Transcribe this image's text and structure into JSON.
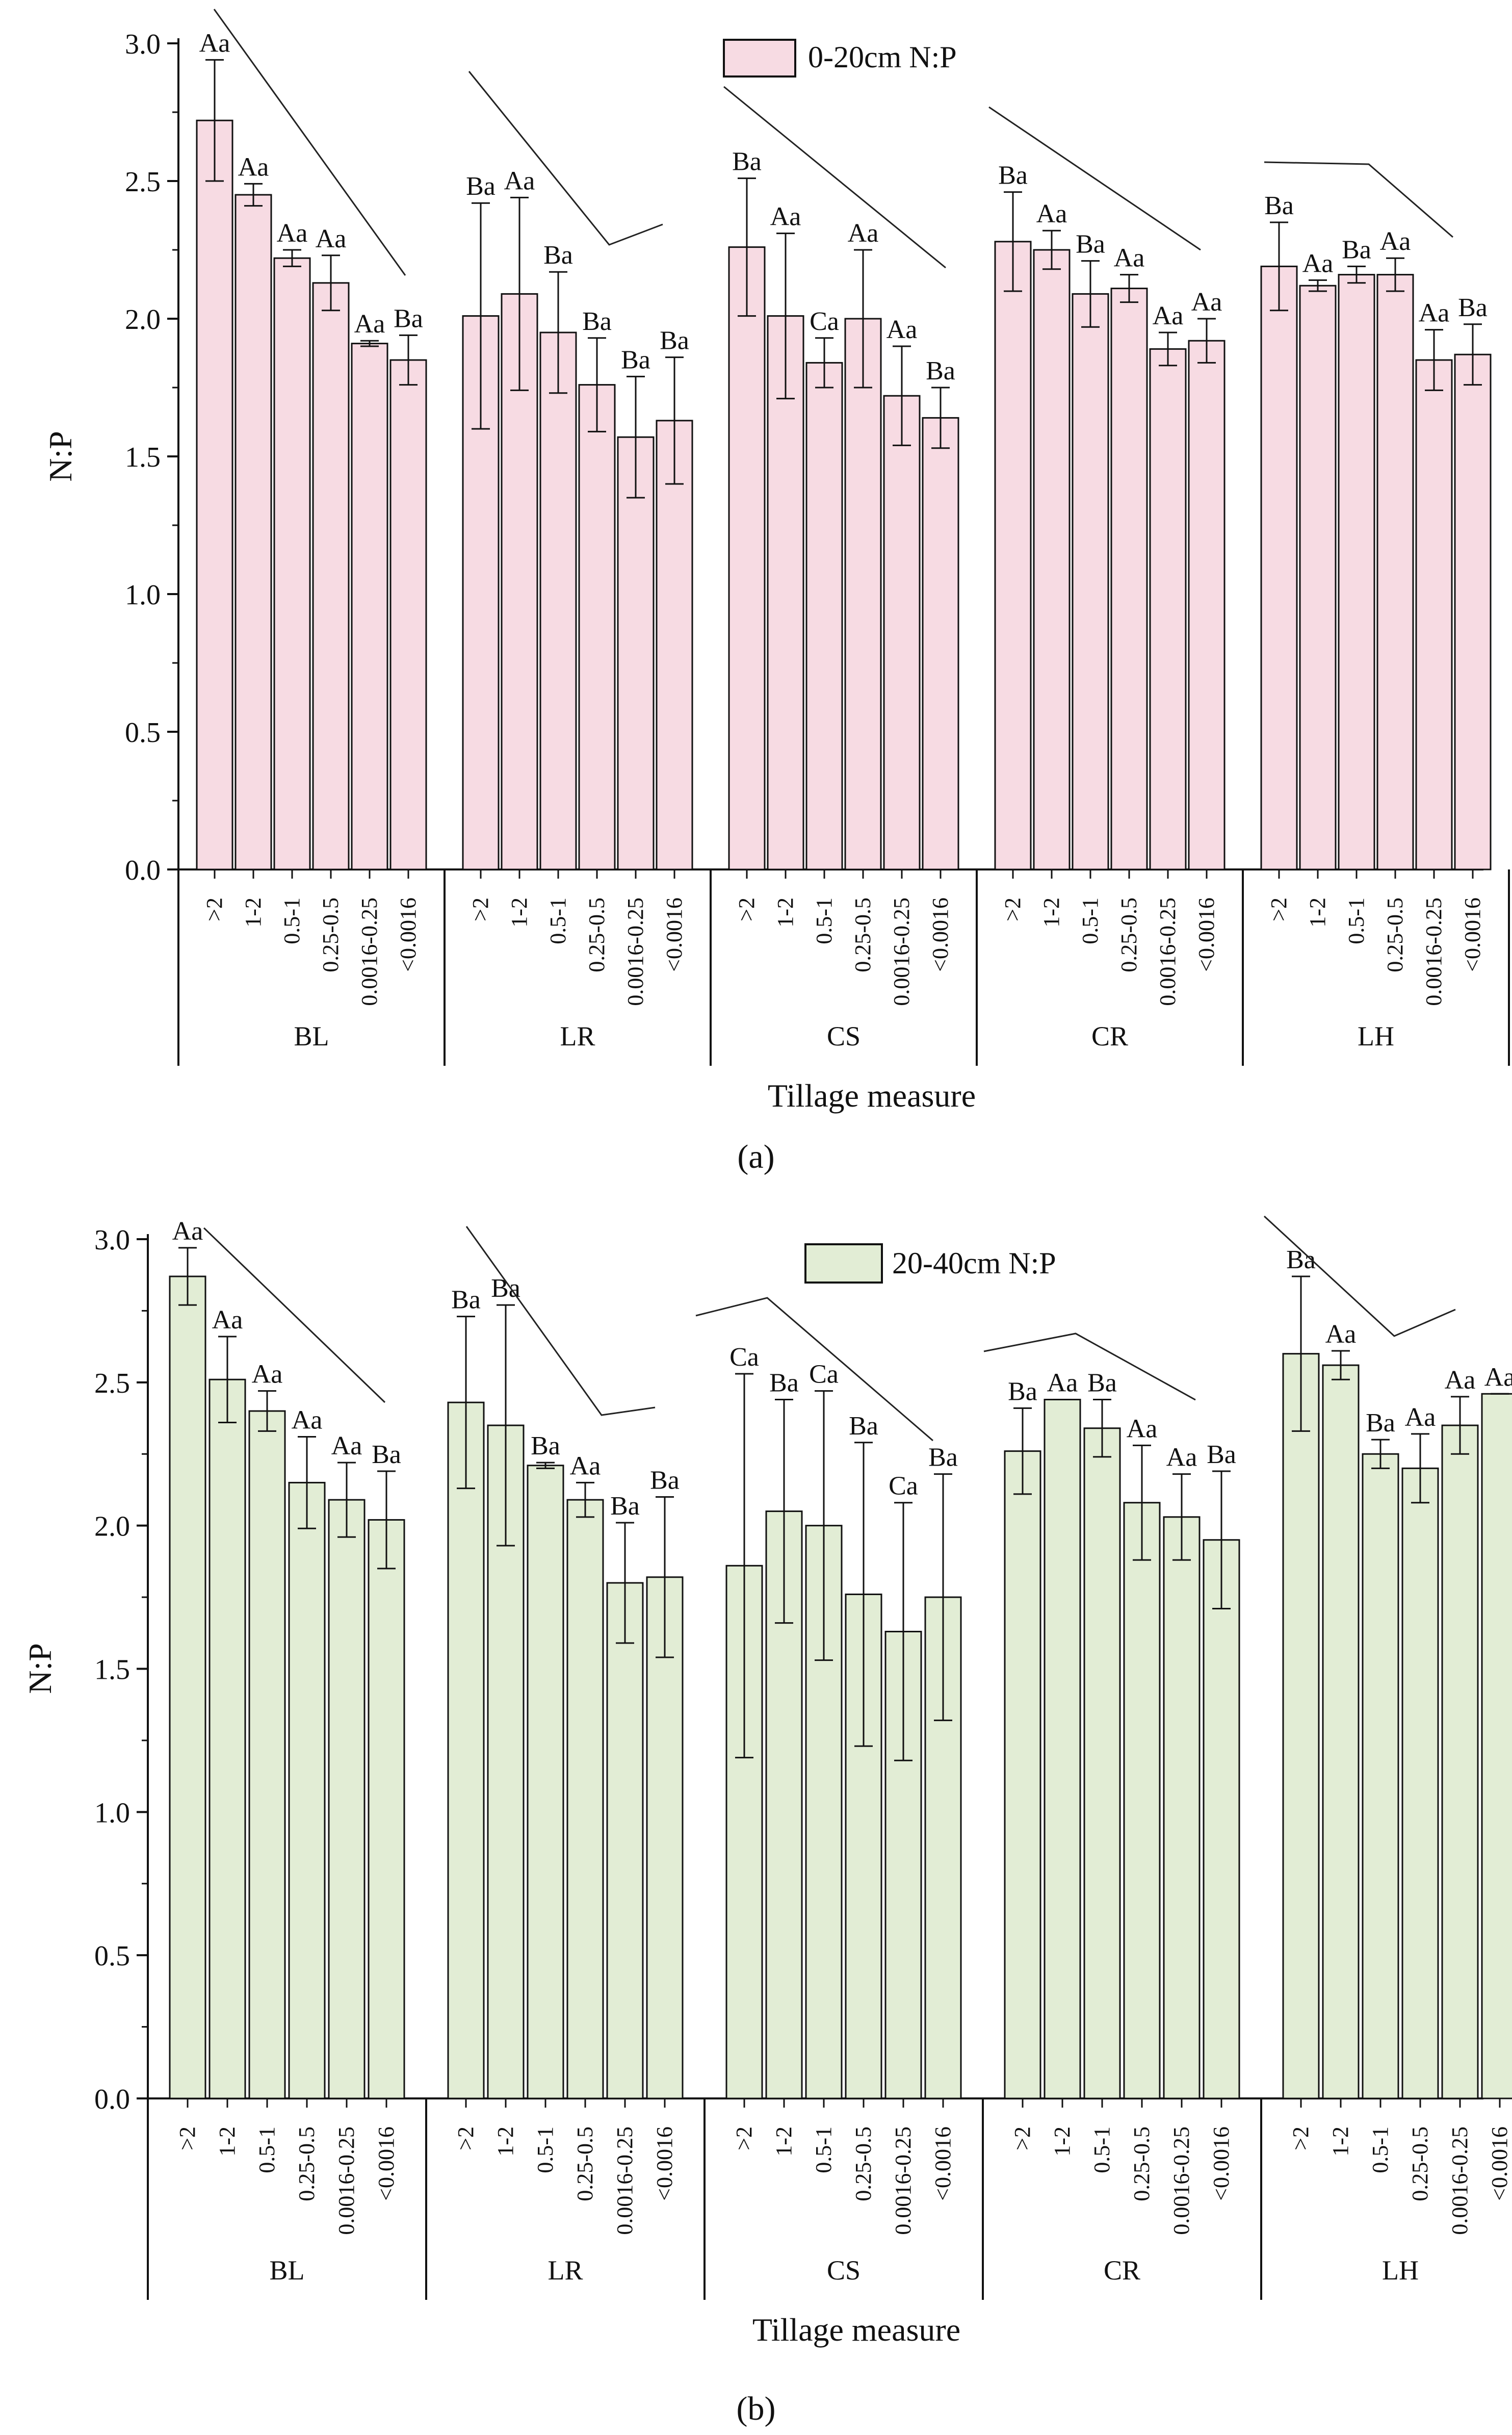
{
  "figure": {
    "panel_labels": [
      "(a)",
      "(b)"
    ]
  },
  "chart_data": [
    {
      "type": "bar",
      "panel": "(a)",
      "legend": "0-20cm N:P",
      "color": "#f7dbe3",
      "xlabel": "Tillage measure",
      "ylabel": "N:P",
      "ylim": [
        0,
        3.0
      ],
      "yticks": [
        "0.0",
        "0.5",
        "1.0",
        "1.5",
        "2.0",
        "2.5",
        "3.0"
      ],
      "categories": [
        ">2",
        "1-2",
        "0.5-1",
        "0.25-0.5",
        "0.0016-0.25",
        "<0.0016"
      ],
      "groups": [
        {
          "name": "BL",
          "values": [
            2.72,
            2.45,
            2.22,
            2.13,
            1.91,
            1.85
          ],
          "errors": [
            0.22,
            0.04,
            0.03,
            0.1,
            0.01,
            0.09
          ],
          "letters": [
            "Aa",
            "Aa",
            "Aa",
            "Aa",
            "Aa",
            "Ba"
          ]
        },
        {
          "name": "LR",
          "values": [
            2.01,
            2.09,
            1.95,
            1.76,
            1.57,
            1.63
          ],
          "errors": [
            0.41,
            0.35,
            0.22,
            0.17,
            0.22,
            0.23
          ],
          "letters": [
            "Ba",
            "Aa",
            "Ba",
            "Ba",
            "Ba",
            "Ba"
          ]
        },
        {
          "name": "CS",
          "values": [
            2.26,
            2.01,
            1.84,
            2.0,
            1.72,
            1.64
          ],
          "errors": [
            0.25,
            0.3,
            0.09,
            0.25,
            0.18,
            0.11
          ],
          "letters": [
            "Ba",
            "Aa",
            "Ca",
            "Aa",
            "Aa",
            "Ba"
          ]
        },
        {
          "name": "CR",
          "values": [
            2.28,
            2.25,
            2.09,
            2.11,
            1.89,
            1.92
          ],
          "errors": [
            0.18,
            0.07,
            0.12,
            0.05,
            0.06,
            0.08
          ],
          "letters": [
            "Ba",
            "Aa",
            "Ba",
            "Aa",
            "Aa",
            "Aa"
          ]
        },
        {
          "name": "LH",
          "values": [
            2.19,
            2.12,
            2.16,
            2.16,
            1.85,
            1.87
          ],
          "errors": [
            0.16,
            0.02,
            0.03,
            0.06,
            0.11,
            0.11
          ],
          "letters": [
            "Ba",
            "Aa",
            "Ba",
            "Aa",
            "Aa",
            "Ba"
          ]
        }
      ]
    },
    {
      "type": "bar",
      "panel": "(b)",
      "legend": "20-40cm N:P",
      "color": "#e2edd5",
      "xlabel": "Tillage measure",
      "ylabel": "N:P",
      "ylim": [
        0,
        3.0
      ],
      "yticks": [
        "0.0",
        "0.5",
        "1.0",
        "1.5",
        "2.0",
        "2.5",
        "3.0"
      ],
      "categories": [
        ">2",
        "1-2",
        "0.5-1",
        "0.25-0.5",
        "0.0016-0.25",
        "<0.0016"
      ],
      "groups": [
        {
          "name": "BL",
          "values": [
            2.87,
            2.51,
            2.4,
            2.15,
            2.09,
            2.02
          ],
          "errors": [
            0.1,
            0.15,
            0.07,
            0.16,
            0.13,
            0.17
          ],
          "letters": [
            "Aa",
            "Aa",
            "Aa",
            "Aa",
            "Aa",
            "Ba"
          ]
        },
        {
          "name": "LR",
          "values": [
            2.43,
            2.35,
            2.21,
            2.09,
            1.8,
            1.82
          ],
          "errors": [
            0.3,
            0.42,
            0.01,
            0.06,
            0.21,
            0.28
          ],
          "letters": [
            "Ba",
            "Ba",
            "Ba",
            "Aa",
            "Ba",
            "Ba"
          ]
        },
        {
          "name": "CS",
          "values": [
            1.86,
            2.05,
            2.0,
            1.76,
            1.63,
            1.75
          ],
          "errors": [
            0.67,
            0.39,
            0.47,
            0.53,
            0.45,
            0.43
          ],
          "letters": [
            "Ca",
            "Ba",
            "Ca",
            "Ba",
            "Ca",
            "Ba"
          ]
        },
        {
          "name": "CR",
          "values": [
            2.26,
            2.44,
            2.34,
            2.08,
            2.03,
            1.95
          ],
          "errors": [
            0.15,
            0.0,
            0.1,
            0.2,
            0.15,
            0.24
          ],
          "letters": [
            "Ba",
            "Aa",
            "Ba",
            "Aa",
            "Aa",
            "Ba"
          ]
        },
        {
          "name": "LH",
          "values": [
            2.6,
            2.56,
            2.25,
            2.2,
            2.35,
            2.46
          ],
          "errors": [
            0.27,
            0.05,
            0.05,
            0.12,
            0.1,
            0.0
          ],
          "letters": [
            "Ba",
            "Aa",
            "Ba",
            "Aa",
            "Aa",
            "Aa"
          ]
        }
      ]
    }
  ]
}
